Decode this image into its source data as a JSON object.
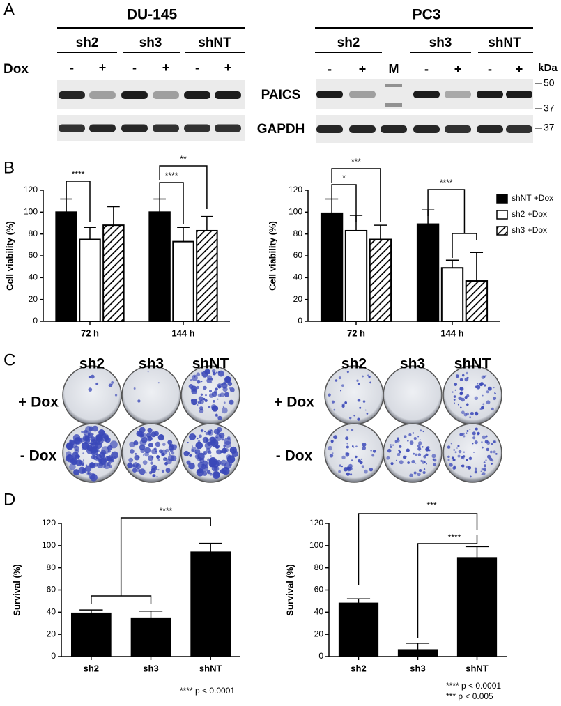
{
  "panel_labels": [
    "A",
    "B",
    "C",
    "D"
  ],
  "blot": {
    "cell_lines": [
      "DU-145",
      "PC3"
    ],
    "left_groups": [
      "sh2",
      "sh3",
      "shNT"
    ],
    "right_groups": [
      "sh2",
      "sh3",
      "shNT"
    ],
    "dox_label": "Dox",
    "left_dox": [
      "-",
      "+",
      "-",
      "+",
      "-",
      "+"
    ],
    "right_dox": [
      "-",
      "+",
      "M",
      "-",
      "+",
      "-",
      "+"
    ],
    "unit": "kDa",
    "proteins": [
      "PAICS",
      "GAPDH"
    ],
    "markers": [
      "50",
      "37",
      "37"
    ]
  },
  "colonies": {
    "left_columns": [
      "sh2",
      "sh3",
      "shNT"
    ],
    "right_columns": [
      "sh2",
      "sh3",
      "shNT"
    ],
    "left_rows": [
      "+ Dox",
      "- Dox"
    ],
    "right_rows": [
      "+ Dox",
      "- Dox"
    ]
  },
  "chart_data": [
    {
      "type": "bar",
      "y_label": "Cell viability (%)",
      "categories": [
        "72 h",
        "144 h"
      ],
      "series": [
        {
          "color": "#000000",
          "values": [
            100,
            100
          ],
          "errors": [
            12,
            12
          ]
        },
        {
          "color": "#ffffff",
          "values": [
            75,
            73
          ],
          "errors": [
            11,
            13
          ]
        },
        {
          "color": "#ffffff",
          "hatch": true,
          "values": [
            88,
            83
          ],
          "errors": [
            17,
            13
          ]
        }
      ],
      "ylim": [
        0,
        120
      ],
      "yticks": [
        0,
        20,
        40,
        60,
        80,
        100,
        120
      ],
      "annotations": [
        "****",
        "****",
        "**"
      ]
    },
    {
      "type": "bar",
      "y_label": "Cell viability (%)",
      "categories": [
        "72 h",
        "144 h"
      ],
      "series": [
        {
          "name": "shNT +Dox",
          "color": "#000000",
          "values": [
            99,
            89
          ],
          "errors": [
            13,
            13
          ]
        },
        {
          "name": "sh2 +Dox",
          "color": "#ffffff",
          "values": [
            83,
            49
          ],
          "errors": [
            14,
            7
          ]
        },
        {
          "name": "sh3 +Dox",
          "color": "#ffffff",
          "hatch": true,
          "values": [
            75,
            37
          ],
          "errors": [
            13,
            26
          ]
        }
      ],
      "ylim": [
        0,
        120
      ],
      "yticks": [
        0,
        20,
        40,
        60,
        80,
        100,
        120
      ],
      "annotations": [
        "*",
        "***",
        "****"
      ],
      "legend": "top-right"
    },
    {
      "type": "bar",
      "y_label": "Survival (%)",
      "categories": [
        "sh2",
        "sh3",
        "shNT"
      ],
      "series": [
        {
          "color": "#000000",
          "values": [
            39,
            34,
            94
          ],
          "errors": [
            3,
            7,
            8
          ]
        }
      ],
      "ylim": [
        0,
        120
      ],
      "yticks": [
        0,
        20,
        40,
        60,
        80,
        100,
        120
      ],
      "annotations": [
        "****"
      ],
      "notes": [
        "**** p < 0.0001"
      ]
    },
    {
      "type": "bar",
      "y_label": "Survival (%)",
      "categories": [
        "sh2",
        "sh3",
        "shNT"
      ],
      "series": [
        {
          "color": "#000000",
          "values": [
            48,
            6,
            89
          ],
          "errors": [
            4,
            6,
            10
          ]
        }
      ],
      "ylim": [
        0,
        120
      ],
      "yticks": [
        0,
        20,
        40,
        60,
        80,
        100,
        120
      ],
      "annotations": [
        "***",
        "****"
      ],
      "notes": [
        "**** p < 0.0001",
        "***  p < 0.005"
      ]
    }
  ]
}
